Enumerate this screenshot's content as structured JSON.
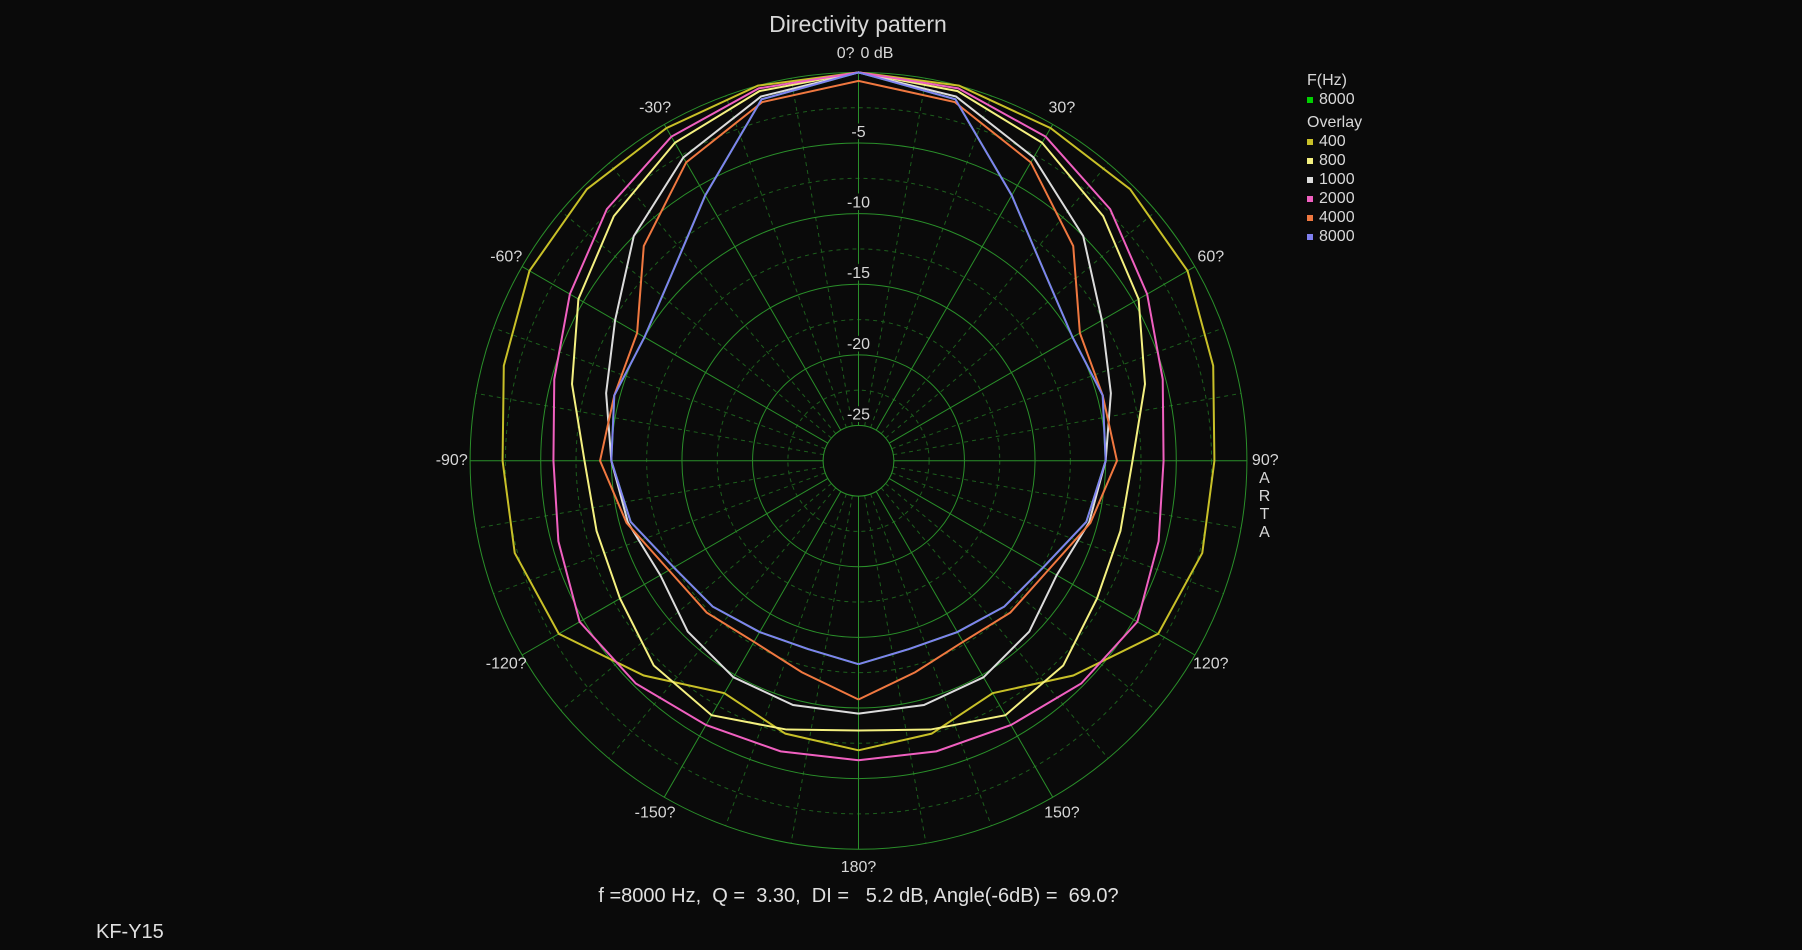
{
  "chart_data": {
    "type": "polar",
    "title": "Directivity pattern",
    "x": [
      -180,
      -165,
      -150,
      -135,
      -120,
      -105,
      -90,
      -75,
      -60,
      -45,
      -30,
      -15,
      0,
      15,
      30,
      45,
      60,
      75,
      90,
      105,
      120,
      135,
      150,
      165,
      180
    ],
    "rlim": [
      -27.5,
      0
    ],
    "rticks": [
      {
        "value": 0,
        "label": "0 dB"
      },
      -5,
      -10,
      -15,
      -20,
      -25
    ],
    "thetaticks": [
      {
        "value": 0,
        "label": "0?"
      },
      {
        "value": 30,
        "label": "30?"
      },
      {
        "value": 60,
        "label": "60?"
      },
      {
        "value": 90,
        "label": "90?"
      },
      {
        "value": 120,
        "label": "120?"
      },
      {
        "value": 150,
        "label": "150?"
      },
      {
        "value": 180,
        "label": "180?"
      },
      {
        "value": -150,
        "label": "-150?"
      },
      {
        "value": -120,
        "label": "-120?"
      },
      {
        "value": -90,
        "label": "-90?"
      },
      {
        "value": -60,
        "label": "-60?"
      },
      {
        "value": -30,
        "label": "-30?"
      }
    ],
    "grid": true,
    "legend_title": "F(Hz)",
    "overlay_title": "Overlay",
    "series": [
      {
        "name": "8000",
        "color": "#00d000",
        "values": [
          -13.1,
          -13.7,
          -13.5,
          -12.9,
          -12.4,
          -10.8,
          -10,
          -9.6,
          -10,
          -8.8,
          -5.8,
          -1,
          0,
          -1,
          -5.8,
          -8.8,
          -10,
          -9.6,
          -10,
          -10.8,
          -12.4,
          -12.9,
          -13.5,
          -13.7,
          -13.1
        ]
      }
    ],
    "overlay_series": [
      {
        "name": "400",
        "color": "#c8c028",
        "values": [
          -7,
          -7.5,
          -8.5,
          -6,
          -3,
          -2.3,
          -2.3,
          -1.5,
          -0.6,
          -0.3,
          -0.3,
          0,
          0,
          0,
          -0.3,
          -0.3,
          -0.6,
          -1.5,
          -2.3,
          -2.3,
          -3,
          -6,
          -8.5,
          -7.5,
          -7
        ]
      },
      {
        "name": "800",
        "color": "#f4f080",
        "values": [
          -8.4,
          -7.8,
          -6.7,
          -7,
          -8,
          -8.3,
          -8.1,
          -6.5,
          -4.6,
          -3,
          -1.5,
          -0.4,
          0,
          -0.4,
          -1.5,
          -3,
          -4.6,
          -6.5,
          -8.1,
          -8.3,
          -8,
          -7,
          -6.7,
          -7.8,
          -8.4
        ]
      },
      {
        "name": "1000",
        "color": "#dcdcdc",
        "values": [
          -9.6,
          -9.6,
          -9.8,
          -10.4,
          -11.3,
          -10.6,
          -10,
          -9,
          -7.6,
          -5,
          -2.7,
          -0.8,
          0,
          -0.8,
          -2.7,
          -5,
          -7.6,
          -9,
          -10,
          -10.6,
          -11.3,
          -10.4,
          -9.8,
          -9.6,
          -9.6
        ]
      },
      {
        "name": "2000",
        "color": "#f060c0",
        "values": [
          -6.3,
          -6.2,
          -5.9,
          -5.2,
          -4.7,
          -5.5,
          -5.9,
          -5.2,
          -3.9,
          -2.3,
          -1,
          -0.2,
          0,
          -0.2,
          -1,
          -2.3,
          -3.9,
          -5.2,
          -5.9,
          -5.5,
          -4.7,
          -5.2,
          -5.9,
          -6.2,
          -6.3
        ]
      },
      {
        "name": "4000",
        "color": "#f07840",
        "values": [
          -10.6,
          -12,
          -12.7,
          -12.3,
          -12,
          -10.5,
          -9.2,
          -9.6,
          -9.4,
          -6,
          -3.1,
          -1.2,
          -0.6,
          -1.2,
          -3.1,
          -6,
          -9.4,
          -9.6,
          -9.2,
          -10.5,
          -12,
          -12.3,
          -12.7,
          -12,
          -10.6
        ]
      },
      {
        "name": "8000",
        "color": "#8080f0",
        "values": [
          -13.1,
          -13.7,
          -13.5,
          -12.9,
          -12.4,
          -10.8,
          -10,
          -9.6,
          -10,
          -8.8,
          -5.8,
          -1,
          0,
          -1,
          -5.8,
          -8.8,
          -10,
          -9.6,
          -10,
          -10.8,
          -12.4,
          -12.9,
          -13.5,
          -13.7,
          -13.1
        ]
      }
    ],
    "watermark": "ARTA",
    "footer": "f =8000 Hz,  Q =  3.30,  DI =   5.2 dB, Angle(-6dB) =  69.0?",
    "model": "KF-Y15"
  }
}
